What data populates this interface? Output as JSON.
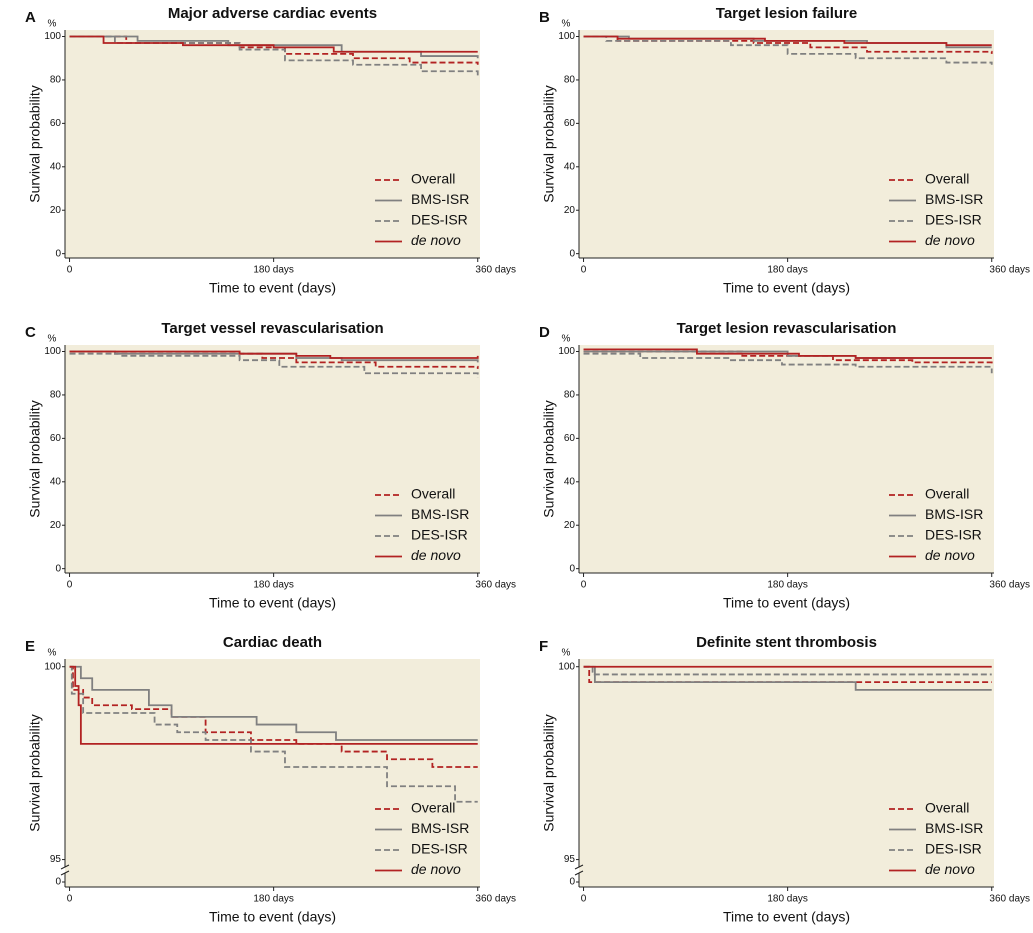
{
  "chart_data": [
    {
      "type": "step",
      "label": "A",
      "title": "Major adverse cardiac events",
      "yunit": "%",
      "ylabel": "Survival probability",
      "xlabel": "Time to event (days)",
      "xlim": [
        -4,
        362
      ],
      "ylim": [
        -2,
        103
      ],
      "xticks": [
        0,
        {
          "value": 180,
          "label": "180 days"
        },
        {
          "value": 360,
          "label": "360 days"
        }
      ],
      "yticks": [
        0,
        20,
        40,
        60,
        80,
        100
      ],
      "legend": "lower right",
      "series": [
        {
          "name": "Overall",
          "color": "#b22222",
          "dashed": true,
          "x": [
            0,
            50,
            150,
            190,
            250,
            300,
            360
          ],
          "values": [
            100,
            97,
            95,
            92,
            90,
            88,
            87
          ]
        },
        {
          "name": "BMS-ISR",
          "color": "#808080",
          "dashed": false,
          "x": [
            0,
            60,
            140,
            240,
            310,
            360
          ],
          "values": [
            100,
            98,
            96,
            93,
            91,
            90
          ]
        },
        {
          "name": "DES-ISR",
          "color": "#808080",
          "dashed": true,
          "x": [
            0,
            40,
            150,
            190,
            250,
            310,
            360
          ],
          "values": [
            100,
            97,
            94,
            89,
            87,
            84,
            82
          ]
        },
        {
          "name": "de novo",
          "color": "#b22222",
          "dashed": false,
          "x": [
            0,
            30,
            100,
            180,
            233,
            360
          ],
          "values": [
            100,
            97,
            96,
            95,
            93,
            93
          ]
        }
      ]
    },
    {
      "type": "step",
      "label": "B",
      "title": "Target lesion failure",
      "yunit": "%",
      "ylabel": "Survival probability",
      "xlabel": "Time to event (days)",
      "xlim": [
        -4,
        362
      ],
      "ylim": [
        -2,
        103
      ],
      "xticks": [
        0,
        {
          "value": 180,
          "label": "180 days"
        },
        {
          "value": 360,
          "label": "360 days"
        }
      ],
      "yticks": [
        0,
        20,
        40,
        60,
        80,
        100
      ],
      "legend": "lower right",
      "series": [
        {
          "name": "Overall",
          "color": "#b22222",
          "dashed": true,
          "x": [
            0,
            30,
            150,
            200,
            250,
            360
          ],
          "values": [
            100,
            98,
            97,
            95,
            93,
            92
          ]
        },
        {
          "name": "BMS-ISR",
          "color": "#808080",
          "dashed": false,
          "x": [
            0,
            40,
            150,
            250,
            320,
            360
          ],
          "values": [
            100,
            99,
            98,
            97,
            95,
            95
          ]
        },
        {
          "name": "DES-ISR",
          "color": "#808080",
          "dashed": true,
          "x": [
            0,
            20,
            130,
            180,
            240,
            320,
            360
          ],
          "values": [
            100,
            98,
            96,
            92,
            90,
            88,
            87
          ]
        },
        {
          "name": "de novo",
          "color": "#b22222",
          "dashed": false,
          "x": [
            0,
            30,
            160,
            230,
            320,
            360
          ],
          "values": [
            100,
            99,
            98,
            97,
            96,
            96
          ]
        }
      ]
    },
    {
      "type": "step",
      "label": "C",
      "title": "Target vessel revascularisation",
      "yunit": "%",
      "ylabel": "Survival probability",
      "xlabel": "Time to event (days)",
      "xlim": [
        -4,
        362
      ],
      "ylim": [
        -2,
        103
      ],
      "xticks": [
        0,
        {
          "value": 180,
          "label": "180 days"
        },
        {
          "value": 360,
          "label": "360 days"
        }
      ],
      "yticks": [
        0,
        20,
        40,
        60,
        80,
        100
      ],
      "legend": "lower right",
      "series": [
        {
          "name": "Overall",
          "color": "#b22222",
          "dashed": true,
          "x": [
            0,
            40,
            170,
            200,
            270,
            360
          ],
          "values": [
            100,
            99,
            97,
            95,
            93,
            92
          ]
        },
        {
          "name": "BMS-ISR",
          "color": "#808080",
          "dashed": false,
          "x": [
            0,
            40,
            200,
            240,
            360
          ],
          "values": [
            100,
            99,
            97,
            96,
            95
          ]
        },
        {
          "name": "DES-ISR",
          "color": "#808080",
          "dashed": true,
          "x": [
            0,
            45,
            150,
            185,
            260,
            360
          ],
          "values": [
            99,
            98,
            96,
            93,
            90,
            88
          ]
        },
        {
          "name": "de novo",
          "color": "#b22222",
          "dashed": false,
          "x": [
            0,
            150,
            200,
            230,
            360
          ],
          "values": [
            100,
            99,
            98,
            97,
            98
          ]
        }
      ]
    },
    {
      "type": "step",
      "label": "D",
      "title": "Target lesion revascularisation",
      "yunit": "%",
      "ylabel": "Survival probability",
      "xlabel": "Time to event (days)",
      "xlim": [
        -4,
        362
      ],
      "ylim": [
        -2,
        103
      ],
      "xticks": [
        0,
        {
          "value": 180,
          "label": "180 days"
        },
        {
          "value": 360,
          "label": "360 days"
        }
      ],
      "yticks": [
        0,
        20,
        40,
        60,
        80,
        100
      ],
      "legend": "lower right",
      "series": [
        {
          "name": "Overall",
          "color": "#b22222",
          "dashed": true,
          "x": [
            0,
            140,
            220,
            290,
            360
          ],
          "values": [
            100,
            98,
            96,
            95,
            94
          ]
        },
        {
          "name": "BMS-ISR",
          "color": "#808080",
          "dashed": false,
          "x": [
            0,
            180,
            240,
            360
          ],
          "values": [
            100,
            98,
            97,
            97
          ]
        },
        {
          "name": "DES-ISR",
          "color": "#808080",
          "dashed": true,
          "x": [
            0,
            50,
            130,
            175,
            240,
            360
          ],
          "values": [
            99,
            97,
            96,
            94,
            93,
            90
          ]
        },
        {
          "name": "de novo",
          "color": "#b22222",
          "dashed": false,
          "x": [
            0,
            100,
            190,
            240,
            360
          ],
          "values": [
            101,
            99,
            98,
            97,
            97
          ]
        }
      ]
    },
    {
      "type": "step",
      "label": "E",
      "title": "Cardiac death",
      "yunit": "%",
      "ylabel": "Survival probability",
      "xlabel": "Time to event (days)",
      "axis_break": true,
      "xlim": [
        -4,
        362
      ],
      "ylim": [
        94.6,
        100.2
      ],
      "xticks": [
        0,
        {
          "value": 180,
          "label": "180 days"
        },
        {
          "value": 360,
          "label": "360 days"
        }
      ],
      "yticks": [
        0,
        95,
        100
      ],
      "legend": "lower right",
      "series": [
        {
          "name": "Overall",
          "color": "#b22222",
          "dashed": true,
          "x": [
            0,
            3,
            12,
            20,
            55,
            90,
            120,
            160,
            200,
            240,
            280,
            320,
            360
          ],
          "values": [
            100,
            99.4,
            99.2,
            99.0,
            98.9,
            98.7,
            98.3,
            98.1,
            98.0,
            97.8,
            97.6,
            97.4,
            97.4
          ]
        },
        {
          "name": "BMS-ISR",
          "color": "#808080",
          "dashed": false,
          "x": [
            0,
            10,
            20,
            70,
            90,
            165,
            200,
            235,
            360
          ],
          "values": [
            100,
            99.7,
            99.4,
            99.0,
            98.7,
            98.5,
            98.3,
            98.1,
            98.1
          ]
        },
        {
          "name": "DES-ISR",
          "color": "#808080",
          "dashed": true,
          "x": [
            0,
            2,
            12,
            75,
            95,
            120,
            160,
            190,
            280,
            340,
            360
          ],
          "values": [
            100,
            99.3,
            98.8,
            98.5,
            98.3,
            98.1,
            97.8,
            97.4,
            96.9,
            96.5,
            96.5
          ]
        },
        {
          "name": "de novo",
          "color": "#b22222",
          "dashed": false,
          "x": [
            0,
            5,
            8,
            10,
            360
          ],
          "values": [
            100,
            99.5,
            99.0,
            98.0,
            98.0
          ]
        }
      ]
    },
    {
      "type": "step",
      "label": "F",
      "title": "Definite stent thrombosis",
      "yunit": "%",
      "ylabel": "Survival probability",
      "xlabel": "Time to event (days)",
      "axis_break": true,
      "xlim": [
        -4,
        362
      ],
      "ylim": [
        94.6,
        100.2
      ],
      "xticks": [
        0,
        {
          "value": 180,
          "label": "180 days"
        },
        {
          "value": 360,
          "label": "360 days"
        }
      ],
      "yticks": [
        0,
        95,
        100
      ],
      "legend": "lower right",
      "series": [
        {
          "name": "Overall",
          "color": "#b22222",
          "dashed": true,
          "x": [
            0,
            5,
            360
          ],
          "values": [
            100,
            99.6,
            99.6
          ]
        },
        {
          "name": "BMS-ISR",
          "color": "#808080",
          "dashed": false,
          "x": [
            0,
            10,
            240,
            360
          ],
          "values": [
            100,
            99.6,
            99.4,
            99.4
          ]
        },
        {
          "name": "DES-ISR",
          "color": "#808080",
          "dashed": true,
          "x": [
            0,
            8,
            360
          ],
          "values": [
            100,
            99.8,
            99.8
          ]
        },
        {
          "name": "de novo",
          "color": "#b22222",
          "dashed": false,
          "x": [
            0,
            360
          ],
          "values": [
            100,
            100
          ]
        }
      ]
    }
  ]
}
